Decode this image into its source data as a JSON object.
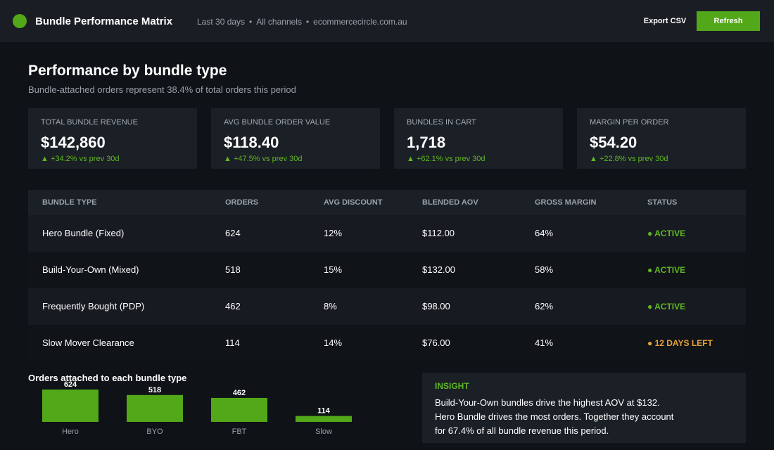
{
  "header": {
    "title": "Bundle Performance Matrix",
    "meta": [
      "Last 30 days",
      "All channels",
      "ecommercecircle.com.au"
    ],
    "export_label": "Export CSV",
    "refresh_label": "Refresh",
    "accent_color": "#52a818"
  },
  "page": {
    "title": "Performance by bundle type",
    "subtitle": "Bundle-attached orders represent 38.4% of total orders this period"
  },
  "kpis": [
    {
      "label": "TOTAL BUNDLE REVENUE",
      "value": "$142,860",
      "delta": "▲ +34.2%  vs prev 30d"
    },
    {
      "label": "AVG BUNDLE ORDER VALUE",
      "value": "$118.40",
      "delta": "▲ +47.5%  vs prev 30d"
    },
    {
      "label": "BUNDLES IN CART",
      "value": "1,718",
      "delta": "▲ +62.1%  vs prev 30d"
    },
    {
      "label": "MARGIN PER ORDER",
      "value": "$54.20",
      "delta": "▲ +22.8%  vs prev 30d"
    }
  ],
  "table": {
    "columns": [
      "BUNDLE TYPE",
      "ORDERS",
      "AVG DISCOUNT",
      "BLENDED AOV",
      "GROSS MARGIN",
      "STATUS"
    ],
    "rows": [
      {
        "type": "Hero Bundle (Fixed)",
        "orders": "624",
        "discount": "12%",
        "aov": "$112.00",
        "margin": "64%",
        "status": "● ACTIVE",
        "status_color": "#5fb823"
      },
      {
        "type": "Build-Your-Own (Mixed)",
        "orders": "518",
        "discount": "15%",
        "aov": "$132.00",
        "margin": "58%",
        "status": "● ACTIVE",
        "status_color": "#5fb823"
      },
      {
        "type": "Frequently Bought (PDP)",
        "orders": "462",
        "discount": "8%",
        "aov": "$98.00",
        "margin": "62%",
        "status": "● ACTIVE",
        "status_color": "#5fb823"
      },
      {
        "type": "Slow Mover Clearance",
        "orders": "114",
        "discount": "14%",
        "aov": "$76.00",
        "margin": "41%",
        "status": "● 12 DAYS LEFT",
        "status_color": "#e5a13a"
      }
    ]
  },
  "chart_data": {
    "type": "bar",
    "title": "Orders attached to each bundle type",
    "categories": [
      "Hero",
      "BYO",
      "FBT",
      "Slow"
    ],
    "values": [
      624,
      518,
      462,
      114
    ],
    "ylim": [
      0,
      624
    ],
    "bar_color": "#52a818",
    "grid": false
  },
  "insight": {
    "label": "INSIGHT",
    "text": "Build-Your-Own bundles drive the highest AOV at $132. Hero Bundle drives the most orders. Together they account for 67.4% of all bundle revenue this period."
  }
}
